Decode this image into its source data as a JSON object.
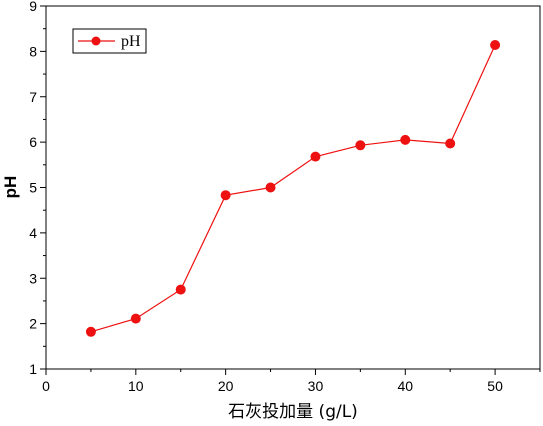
{
  "chart_data": {
    "type": "line",
    "title": "",
    "xlabel": "石灰投加量 (g/L)",
    "ylabel": "pH",
    "xlim": [
      0,
      55
    ],
    "ylim": [
      1,
      9
    ],
    "xticks": [
      0,
      10,
      20,
      30,
      40,
      50
    ],
    "yticks": [
      1,
      2,
      3,
      4,
      5,
      6,
      7,
      8,
      9
    ],
    "grid": false,
    "legend_position": "top-left",
    "series": [
      {
        "name": "pH",
        "color": "#ee1111",
        "marker": "circle",
        "x": [
          5,
          10,
          15,
          20,
          25,
          30,
          35,
          40,
          45,
          50
        ],
        "y": [
          1.82,
          2.11,
          2.75,
          4.83,
          5.0,
          5.68,
          5.93,
          6.05,
          5.97,
          8.14
        ]
      }
    ]
  }
}
